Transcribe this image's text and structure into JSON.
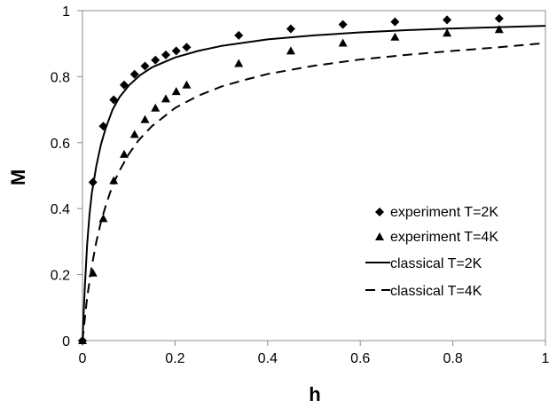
{
  "chart_data": {
    "type": "scatter",
    "xlabel": "h",
    "ylabel": "M",
    "xlim": [
      0,
      1
    ],
    "ylim": [
      0,
      1
    ],
    "x_ticks": [
      "0",
      "0.2",
      "0.4",
      "0.6",
      "0.8",
      "1"
    ],
    "y_ticks": [
      "0",
      "0.2",
      "0.4",
      "0.6",
      "0.8",
      "1"
    ],
    "grid": false,
    "legend_position": "bottom-right",
    "series": [
      {
        "name": "experiment T=2K",
        "kind": "points",
        "marker": "diamond",
        "color": "#000000",
        "points": [
          [
            0,
            0
          ],
          [
            0.0225,
            0.48
          ],
          [
            0.045,
            0.65
          ],
          [
            0.0675,
            0.73
          ],
          [
            0.09,
            0.775
          ],
          [
            0.1125,
            0.807
          ],
          [
            0.135,
            0.832
          ],
          [
            0.1575,
            0.85
          ],
          [
            0.18,
            0.866
          ],
          [
            0.2025,
            0.878
          ],
          [
            0.225,
            0.889
          ],
          [
            0.3375,
            0.925
          ],
          [
            0.45,
            0.945
          ],
          [
            0.5625,
            0.958
          ],
          [
            0.675,
            0.966
          ],
          [
            0.7875,
            0.972
          ],
          [
            0.9,
            0.976
          ]
        ]
      },
      {
        "name": "experiment T=4K",
        "kind": "points",
        "marker": "triangle",
        "color": "#000000",
        "points": [
          [
            0,
            0
          ],
          [
            0.0225,
            0.205
          ],
          [
            0.045,
            0.37
          ],
          [
            0.0675,
            0.485
          ],
          [
            0.09,
            0.565
          ],
          [
            0.1125,
            0.625
          ],
          [
            0.135,
            0.67
          ],
          [
            0.1575,
            0.705
          ],
          [
            0.18,
            0.733
          ],
          [
            0.2025,
            0.755
          ],
          [
            0.225,
            0.775
          ],
          [
            0.3375,
            0.84
          ],
          [
            0.45,
            0.878
          ],
          [
            0.5625,
            0.902
          ],
          [
            0.675,
            0.92
          ],
          [
            0.7875,
            0.932
          ],
          [
            0.9,
            0.943
          ]
        ]
      },
      {
        "name": "classical T=2K",
        "kind": "line",
        "dash": "solid",
        "color": "#000000",
        "points": [
          [
            0,
            0
          ],
          [
            0.005,
            0.16
          ],
          [
            0.01,
            0.29
          ],
          [
            0.015,
            0.38
          ],
          [
            0.02,
            0.445
          ],
          [
            0.03,
            0.53
          ],
          [
            0.04,
            0.595
          ],
          [
            0.05,
            0.643
          ],
          [
            0.065,
            0.7
          ],
          [
            0.08,
            0.738
          ],
          [
            0.1,
            0.773
          ],
          [
            0.125,
            0.805
          ],
          [
            0.15,
            0.828
          ],
          [
            0.2,
            0.858
          ],
          [
            0.25,
            0.878
          ],
          [
            0.3,
            0.893
          ],
          [
            0.4,
            0.913
          ],
          [
            0.5,
            0.925
          ],
          [
            0.6,
            0.934
          ],
          [
            0.7,
            0.941
          ],
          [
            0.8,
            0.946
          ],
          [
            0.9,
            0.95
          ],
          [
            1.0,
            0.954
          ]
        ]
      },
      {
        "name": "classical T=4K",
        "kind": "line",
        "dash": "dashed",
        "color": "#000000",
        "points": [
          [
            0,
            0
          ],
          [
            0.01,
            0.13
          ],
          [
            0.02,
            0.225
          ],
          [
            0.03,
            0.3
          ],
          [
            0.04,
            0.36
          ],
          [
            0.05,
            0.408
          ],
          [
            0.06,
            0.45
          ],
          [
            0.07,
            0.485
          ],
          [
            0.08,
            0.515
          ],
          [
            0.1,
            0.565
          ],
          [
            0.12,
            0.605
          ],
          [
            0.15,
            0.65
          ],
          [
            0.2,
            0.705
          ],
          [
            0.25,
            0.742
          ],
          [
            0.3,
            0.77
          ],
          [
            0.35,
            0.79
          ],
          [
            0.4,
            0.808
          ],
          [
            0.5,
            0.833
          ],
          [
            0.6,
            0.852
          ],
          [
            0.7,
            0.866
          ],
          [
            0.8,
            0.878
          ],
          [
            0.9,
            0.889
          ],
          [
            1.0,
            0.902
          ]
        ]
      }
    ]
  }
}
